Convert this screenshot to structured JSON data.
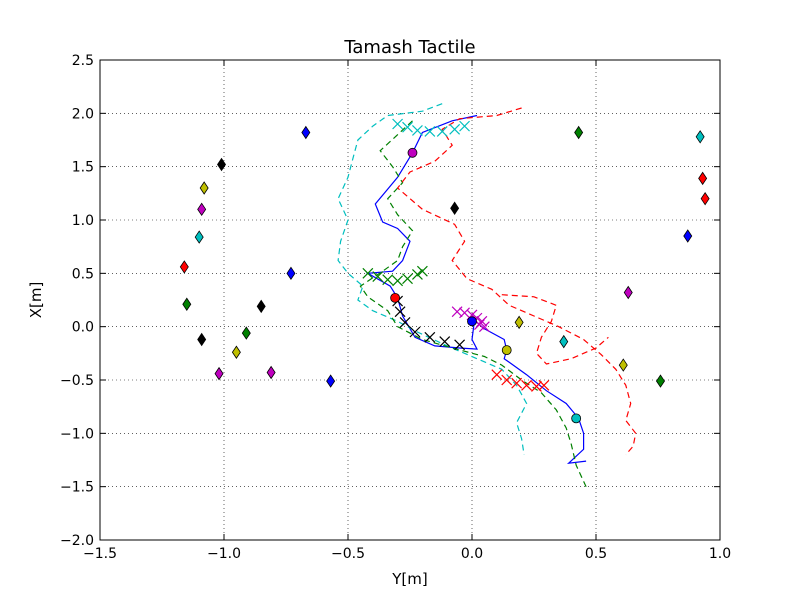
{
  "chart_data": {
    "type": "scatter",
    "title": "Tamash Tactile",
    "xlabel": "Y[m]",
    "ylabel": "X[m]",
    "xlim": [
      -1.5,
      1.0
    ],
    "ylim": [
      -2.0,
      2.5
    ],
    "xticks": [
      -1.5,
      -1.0,
      -0.5,
      0.0,
      0.5,
      1.0
    ],
    "yticks": [
      -2.0,
      -1.5,
      -1.0,
      -0.5,
      0.0,
      0.5,
      1.0,
      1.5,
      2.0,
      2.5
    ],
    "xtick_labels": [
      "−1.5",
      "−1.0",
      "−0.5",
      "0.0",
      "0.5",
      "1.0"
    ],
    "ytick_labels": [
      "−2.0",
      "−1.5",
      "−1.0",
      "−0.5",
      "0.0",
      "0.5",
      "1.0",
      "1.5",
      "2.0",
      "2.5"
    ],
    "grid": true,
    "diamond_markers": [
      {
        "color": "#0000ff",
        "points": [
          [
            -0.67,
            1.82
          ],
          [
            -0.73,
            0.5
          ],
          [
            -0.57,
            -0.51
          ],
          [
            0.87,
            0.85
          ]
        ]
      },
      {
        "color": "#008000",
        "points": [
          [
            0.43,
            1.82
          ],
          [
            -1.15,
            0.21
          ],
          [
            -0.91,
            -0.06
          ],
          [
            0.76,
            -0.51
          ]
        ]
      },
      {
        "color": "#000000",
        "points": [
          [
            -1.01,
            1.52
          ],
          [
            -0.85,
            0.19
          ],
          [
            -1.09,
            -0.12
          ],
          [
            -0.07,
            1.11
          ]
        ]
      },
      {
        "color": "#bfbf00",
        "points": [
          [
            -1.08,
            1.3
          ],
          [
            -0.95,
            -0.24
          ],
          [
            0.61,
            -0.36
          ],
          [
            0.19,
            0.04
          ]
        ]
      },
      {
        "color": "#bf00bf",
        "points": [
          [
            -1.09,
            1.1
          ],
          [
            -1.02,
            -0.44
          ],
          [
            -0.81,
            -0.43
          ],
          [
            0.63,
            0.32
          ]
        ]
      },
      {
        "color": "#00bfbf",
        "points": [
          [
            -1.1,
            0.84
          ],
          [
            0.92,
            1.78
          ],
          [
            0.37,
            -0.14
          ]
        ]
      },
      {
        "color": "#ff0000",
        "points": [
          [
            -1.16,
            0.56
          ],
          [
            0.93,
            1.39
          ],
          [
            0.94,
            1.2
          ]
        ]
      }
    ],
    "robot_paths": [
      {
        "color": "#0000ff",
        "style": "solid",
        "points": [
          [
            0.02,
            1.98
          ],
          [
            -0.08,
            1.93
          ],
          [
            -0.2,
            1.82
          ],
          [
            -0.24,
            1.63
          ],
          [
            -0.3,
            1.4
          ],
          [
            -0.39,
            1.15
          ],
          [
            -0.36,
            0.98
          ],
          [
            -0.3,
            0.92
          ],
          [
            -0.25,
            0.8
          ],
          [
            -0.28,
            0.62
          ],
          [
            -0.32,
            0.52
          ],
          [
            -0.42,
            0.5
          ],
          [
            -0.33,
            0.38
          ],
          [
            -0.3,
            0.27
          ],
          [
            -0.28,
            0.1
          ],
          [
            -0.23,
            -0.1
          ],
          [
            -0.15,
            -0.18
          ],
          [
            -0.05,
            -0.2
          ],
          [
            0.02,
            -0.21
          ],
          [
            0.0,
            -0.12
          ],
          [
            0.01,
            0.06
          ],
          [
            0.05,
            -0.02
          ],
          [
            0.13,
            -0.12
          ],
          [
            0.14,
            -0.22
          ],
          [
            0.13,
            -0.3
          ],
          [
            0.22,
            -0.45
          ],
          [
            0.3,
            -0.6
          ],
          [
            0.38,
            -0.72
          ],
          [
            0.43,
            -0.86
          ],
          [
            0.45,
            -1.0
          ],
          [
            0.45,
            -1.15
          ],
          [
            0.39,
            -1.28
          ],
          [
            0.46,
            -1.26
          ]
        ]
      },
      {
        "color": "#00bfbf",
        "style": "dashed",
        "points": [
          [
            -0.12,
            2.09
          ],
          [
            -0.2,
            2.02
          ],
          [
            -0.34,
            1.98
          ],
          [
            -0.4,
            1.88
          ],
          [
            -0.46,
            1.75
          ],
          [
            -0.48,
            1.58
          ],
          [
            -0.5,
            1.4
          ],
          [
            -0.54,
            1.2
          ],
          [
            -0.5,
            1.0
          ],
          [
            -0.53,
            0.8
          ],
          [
            -0.54,
            0.62
          ],
          [
            -0.5,
            0.5
          ],
          [
            -0.44,
            0.38
          ],
          [
            -0.46,
            0.25
          ],
          [
            -0.4,
            0.15
          ],
          [
            -0.3,
            0.05
          ],
          [
            -0.22,
            -0.05
          ],
          [
            -0.1,
            -0.18
          ],
          [
            0.02,
            -0.3
          ],
          [
            0.12,
            -0.4
          ],
          [
            0.18,
            -0.55
          ],
          [
            0.22,
            -0.72
          ],
          [
            0.18,
            -0.9
          ],
          [
            0.2,
            -1.05
          ],
          [
            0.21,
            -1.2
          ]
        ]
      },
      {
        "color": "#008000",
        "style": "dashed",
        "points": [
          [
            -0.24,
            1.93
          ],
          [
            -0.3,
            1.8
          ],
          [
            -0.37,
            1.65
          ],
          [
            -0.32,
            1.5
          ],
          [
            -0.28,
            1.35
          ],
          [
            -0.34,
            1.2
          ],
          [
            -0.3,
            1.05
          ],
          [
            -0.24,
            0.9
          ],
          [
            -0.28,
            0.75
          ],
          [
            -0.3,
            0.62
          ],
          [
            -0.36,
            0.52
          ],
          [
            -0.45,
            0.38
          ],
          [
            -0.42,
            0.28
          ],
          [
            -0.34,
            0.15
          ],
          [
            -0.3,
            0.0
          ],
          [
            -0.2,
            -0.12
          ],
          [
            -0.08,
            -0.2
          ],
          [
            0.05,
            -0.28
          ],
          [
            0.12,
            -0.36
          ],
          [
            0.2,
            -0.5
          ],
          [
            0.28,
            -0.62
          ],
          [
            0.34,
            -0.78
          ],
          [
            0.38,
            -0.95
          ],
          [
            0.4,
            -1.1
          ],
          [
            0.42,
            -1.3
          ],
          [
            0.46,
            -1.5
          ]
        ]
      },
      {
        "color": "#ff0000",
        "style": "dashed",
        "points": [
          [
            0.2,
            2.05
          ],
          [
            0.1,
            1.98
          ],
          [
            -0.05,
            1.95
          ],
          [
            -0.12,
            1.85
          ],
          [
            -0.08,
            1.7
          ],
          [
            -0.15,
            1.55
          ],
          [
            -0.25,
            1.45
          ],
          [
            -0.3,
            1.3
          ],
          [
            -0.2,
            1.1
          ],
          [
            -0.07,
            0.96
          ],
          [
            -0.03,
            0.8
          ],
          [
            -0.08,
            0.62
          ],
          [
            -0.02,
            0.45
          ],
          [
            0.08,
            0.35
          ],
          [
            0.15,
            0.2
          ],
          [
            0.25,
            0.1
          ],
          [
            0.35,
            0.0
          ],
          [
            0.45,
            -0.12
          ],
          [
            0.52,
            -0.26
          ],
          [
            0.58,
            -0.4
          ],
          [
            0.62,
            -0.55
          ],
          [
            0.64,
            -0.72
          ],
          [
            0.62,
            -0.88
          ],
          [
            0.66,
            -1.0
          ],
          [
            0.65,
            -1.12
          ],
          [
            0.62,
            -1.2
          ]
        ]
      },
      {
        "color": "#ff0000",
        "style": "dashed",
        "points": [
          [
            0.12,
            0.3
          ],
          [
            0.25,
            0.28
          ],
          [
            0.34,
            0.2
          ],
          [
            0.32,
            0.05
          ],
          [
            0.28,
            -0.1
          ],
          [
            0.26,
            -0.25
          ],
          [
            0.3,
            -0.35
          ],
          [
            0.4,
            -0.3
          ],
          [
            0.5,
            -0.2
          ],
          [
            0.55,
            -0.1
          ]
        ]
      }
    ],
    "foot_clusters": [
      {
        "color": "#00bfbf",
        "marker": "x",
        "points": [
          [
            -0.3,
            1.9
          ],
          [
            -0.26,
            1.87
          ],
          [
            -0.22,
            1.84
          ],
          [
            -0.17,
            1.83
          ],
          [
            -0.12,
            1.83
          ],
          [
            -0.07,
            1.85
          ],
          [
            -0.03,
            1.88
          ]
        ]
      },
      {
        "color": "#008000",
        "marker": "x",
        "points": [
          [
            -0.42,
            0.5
          ],
          [
            -0.38,
            0.47
          ],
          [
            -0.34,
            0.44
          ],
          [
            -0.3,
            0.43
          ],
          [
            -0.26,
            0.45
          ],
          [
            -0.22,
            0.49
          ],
          [
            -0.2,
            0.52
          ]
        ]
      },
      {
        "color": "#000000",
        "marker": "x",
        "points": [
          [
            -0.3,
            0.24
          ],
          [
            -0.29,
            0.14
          ],
          [
            -0.27,
            0.04
          ],
          [
            -0.23,
            -0.05
          ],
          [
            -0.17,
            -0.1
          ],
          [
            -0.11,
            -0.14
          ],
          [
            -0.05,
            -0.17
          ]
        ]
      },
      {
        "color": "#bf00bf",
        "marker": "x",
        "points": [
          [
            -0.06,
            0.14
          ],
          [
            -0.03,
            0.13
          ],
          [
            0.0,
            0.11
          ],
          [
            0.02,
            0.08
          ],
          [
            0.04,
            0.05
          ],
          [
            0.03,
            0.02
          ],
          [
            0.05,
            0.0
          ]
        ]
      },
      {
        "color": "#ff0000",
        "marker": "x",
        "points": [
          [
            0.1,
            -0.45
          ],
          [
            0.14,
            -0.5
          ],
          [
            0.18,
            -0.53
          ],
          [
            0.22,
            -0.55
          ],
          [
            0.26,
            -0.56
          ],
          [
            0.29,
            -0.55
          ]
        ]
      }
    ],
    "robot_positions": [
      {
        "color": "#bf00bf",
        "point": [
          -0.24,
          1.63
        ]
      },
      {
        "color": "#ff0000",
        "point": [
          -0.31,
          0.27
        ]
      },
      {
        "color": "#0000ff",
        "point": [
          0.0,
          0.05
        ]
      },
      {
        "color": "#bfbf00",
        "point": [
          0.14,
          -0.22
        ]
      },
      {
        "color": "#00bfbf",
        "point": [
          0.42,
          -0.86
        ]
      }
    ]
  }
}
